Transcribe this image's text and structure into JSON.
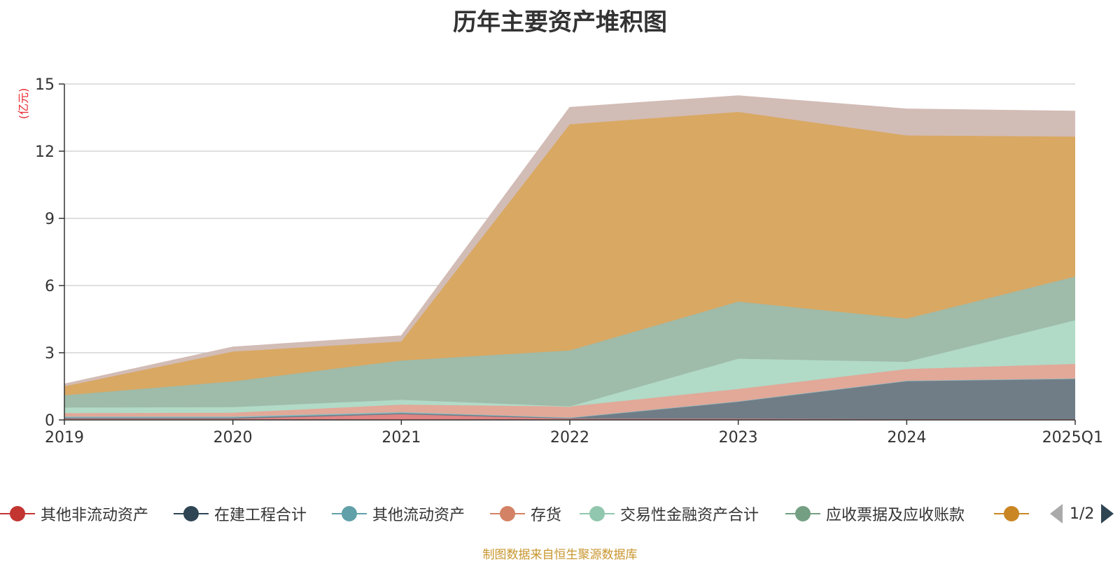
{
  "chart_data": {
    "type": "area",
    "stacked": true,
    "title": "历年主要资产堆积图",
    "ylabel": "(亿元)",
    "categories": [
      "2019",
      "2020",
      "2021",
      "2022",
      "2023",
      "2024",
      "2025Q1"
    ],
    "ylim": [
      0,
      15
    ],
    "yticks": [
      0,
      3,
      6,
      9,
      12,
      15
    ],
    "grid": true,
    "legend_position": "bottom",
    "series": [
      {
        "name": "其他非流动资产",
        "color": "#c23531",
        "fill": "#e08383",
        "values": [
          0.05,
          0.05,
          0.25,
          0.05,
          0.05,
          0.03,
          0.03
        ]
      },
      {
        "name": "在建工程合计",
        "color": "#2f4554",
        "fill": "#707d87",
        "values": [
          0.05,
          0.05,
          0.05,
          0.05,
          0.78,
          1.72,
          1.82
        ]
      },
      {
        "name": "其他流动资产",
        "color": "#61a0a8",
        "fill": "#8fbcc2",
        "values": [
          0.05,
          0.05,
          0.05,
          0.0,
          0.0,
          0.0,
          0.0
        ]
      },
      {
        "name": "存货",
        "color": "#d48265",
        "fill": "#e2a898",
        "values": [
          0.15,
          0.17,
          0.33,
          0.5,
          0.55,
          0.52,
          0.65
        ]
      },
      {
        "name": "交易性金融资产合计",
        "color": "#91c7ae",
        "fill": "#b1dac7",
        "values": [
          0.25,
          0.25,
          0.22,
          0.0,
          1.35,
          0.32,
          1.95
        ]
      },
      {
        "name": "应收票据及应收账款",
        "color": "#749f83",
        "fill": "#9fbba9",
        "values": [
          0.55,
          1.15,
          1.75,
          2.5,
          2.55,
          1.93,
          1.95
        ]
      },
      {
        "name": "",
        "color": "#ca8622",
        "fill": "#d9a862",
        "values": [
          0.4,
          1.33,
          0.85,
          10.1,
          8.47,
          8.18,
          6.25
        ]
      },
      {
        "name": "",
        "color": "#bda29a",
        "fill": "#d2bcb6",
        "values": [
          0.1,
          0.2,
          0.25,
          0.75,
          0.72,
          1.18,
          1.13
        ]
      }
    ]
  },
  "page": {
    "title": "历年主要资产堆积图",
    "unit_label": "(亿元)",
    "source": "制图数据来自恒生聚源数据库",
    "pager": "1/2"
  },
  "legend": {
    "visible_count": 7
  }
}
